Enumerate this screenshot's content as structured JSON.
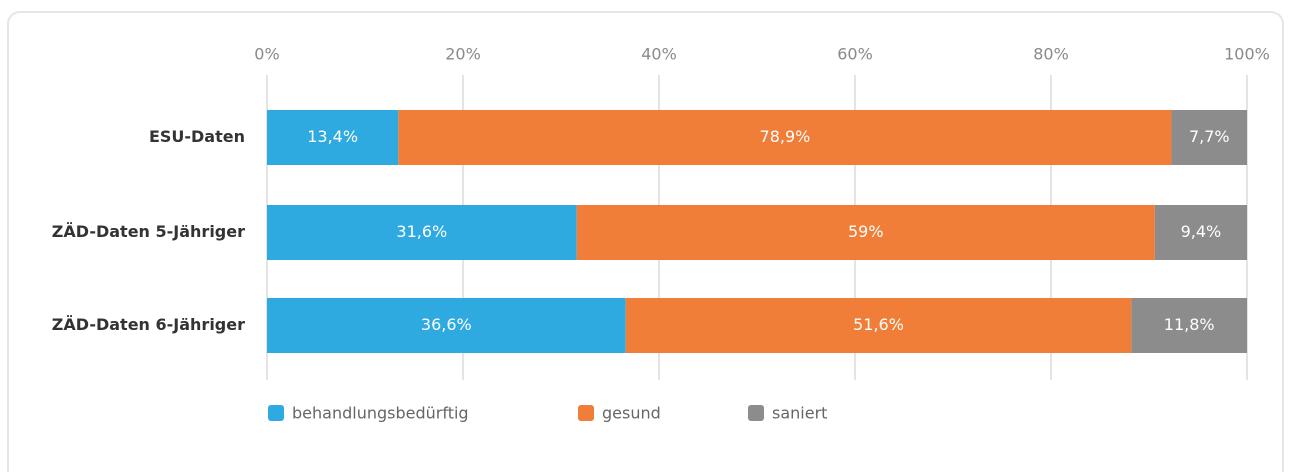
{
  "chart_data": {
    "type": "stacked_barh",
    "categories": [
      "ESU-Daten",
      "ZÄD-Daten 5-Jähriger",
      "ZÄD-Daten 6-Jähriger"
    ],
    "series": [
      {
        "name": "behandlungsbedürftig",
        "color": "#2eaae1",
        "values": [
          13.4,
          31.6,
          36.6
        ],
        "value_labels": [
          "13,4%",
          "31,6%",
          "36,6%"
        ]
      },
      {
        "name": "gesund",
        "color": "#f07d38",
        "values": [
          78.9,
          59,
          51.6
        ],
        "value_labels": [
          "78,9%",
          "59%",
          "51,6%"
        ]
      },
      {
        "name": "saniert",
        "color": "#8c8c8c",
        "values": [
          7.7,
          9.4,
          11.8
        ],
        "value_labels": [
          "7,7%",
          "9,4%",
          "11,8%"
        ]
      }
    ],
    "xlim": [
      0,
      100
    ],
    "xticks": [
      {
        "value": 0,
        "label": "0%"
      },
      {
        "value": 20,
        "label": "20%"
      },
      {
        "value": 40,
        "label": "40%"
      },
      {
        "value": 60,
        "label": "60%"
      },
      {
        "value": 80,
        "label": "80%"
      },
      {
        "value": 100,
        "label": "100%"
      }
    ],
    "grid": true,
    "legend": "bottom"
  }
}
